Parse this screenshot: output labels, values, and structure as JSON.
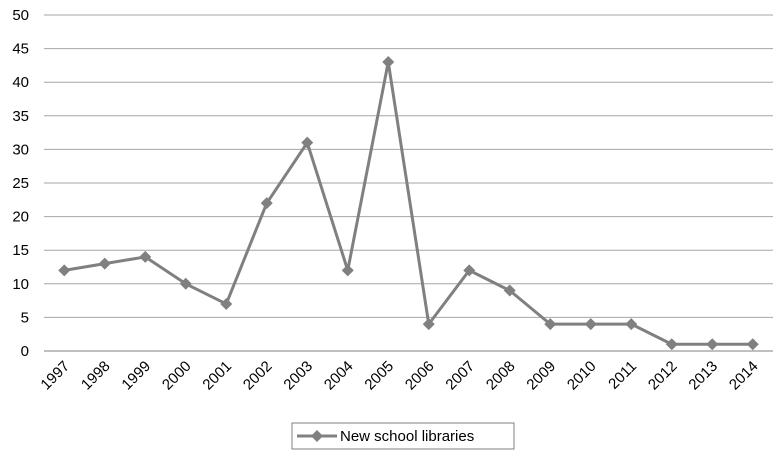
{
  "chart_data": {
    "type": "line",
    "categories": [
      "1997",
      "1998",
      "1999",
      "2000",
      "2001",
      "2002",
      "2003",
      "2004",
      "2005",
      "2006",
      "2007",
      "2008",
      "2009",
      "2010",
      "2011",
      "2012",
      "2013",
      "2014"
    ],
    "series": [
      {
        "name": "New school libraries",
        "values": [
          12,
          13,
          14,
          10,
          7,
          22,
          31,
          12,
          43,
          4,
          12,
          9,
          4,
          4,
          4,
          1,
          1,
          1
        ]
      }
    ],
    "ylim": [
      0,
      50
    ],
    "yticks": [
      "0",
      "5",
      "10",
      "15",
      "20",
      "25",
      "30",
      "35",
      "40",
      "45",
      "50"
    ],
    "grid": "horizontal",
    "legend": "bottom",
    "line_color": "#808080",
    "grid_color": "#a6a6a6"
  }
}
